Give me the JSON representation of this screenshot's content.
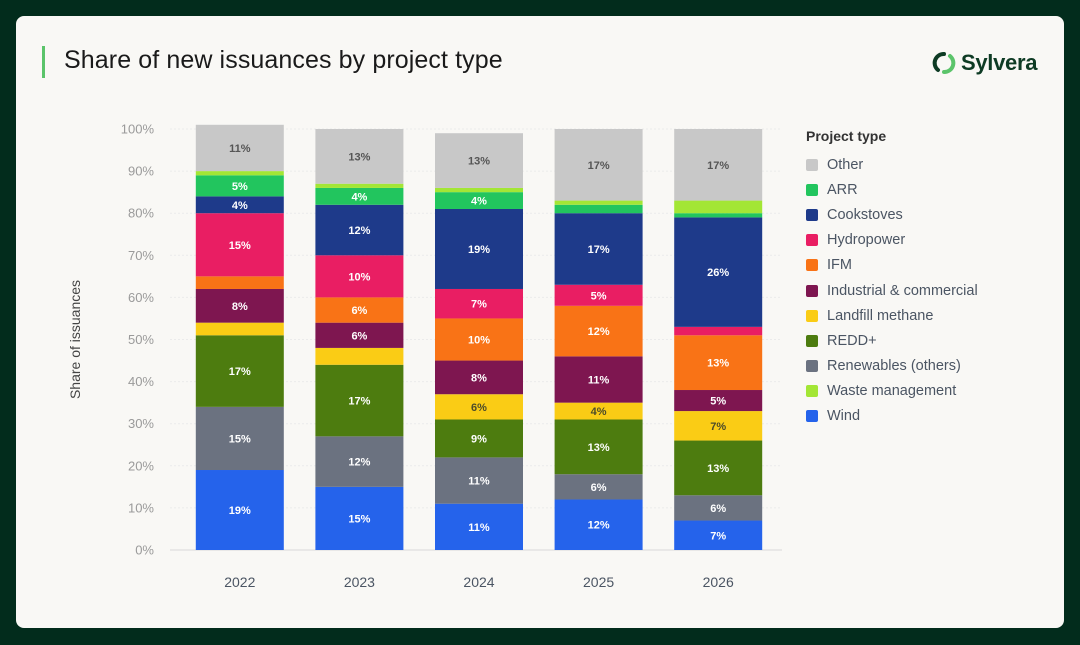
{
  "header": {
    "title": "Share of new issuances by project type",
    "logo_text": "Sylvera",
    "accent_color": "#5bc46a"
  },
  "chart_data": {
    "type": "bar",
    "stacked": true,
    "title": "Share of new issuances by project type",
    "xlabel": "",
    "ylabel": "Share of issuances",
    "ylim": [
      0,
      100
    ],
    "yticks": [
      "0%",
      "10%",
      "20%",
      "30%",
      "40%",
      "50%",
      "60%",
      "70%",
      "80%",
      "90%",
      "100%"
    ],
    "grid": true,
    "legend_title": "Project type",
    "legend_position": "right",
    "categories": [
      "2022",
      "2023",
      "2024",
      "2025",
      "2026"
    ],
    "series": [
      {
        "name": "Wind",
        "color": "#2563eb",
        "values": [
          19,
          15,
          11,
          12,
          7
        ],
        "labels": [
          "19%",
          "15%",
          "11%",
          "12%",
          "7%"
        ],
        "label_color": "#ffffff"
      },
      {
        "name": "Renewables (others)",
        "color": "#6b7280",
        "values": [
          15,
          12,
          11,
          6,
          6
        ],
        "labels": [
          "15%",
          "12%",
          "11%",
          "6%",
          "6%"
        ],
        "label_color": "#ffffff"
      },
      {
        "name": "REDD+",
        "color": "#4d7c0f",
        "values": [
          17,
          17,
          9,
          13,
          13
        ],
        "labels": [
          "17%",
          "17%",
          "9%",
          "13%",
          "13%"
        ],
        "label_color": "#ffffff"
      },
      {
        "name": "Landfill methane",
        "color": "#facc15",
        "values": [
          3,
          4,
          6,
          4,
          7
        ],
        "labels": [
          "",
          "",
          "6%",
          "4%",
          "7%"
        ],
        "label_color": "#4b4b2a"
      },
      {
        "name": "Industrial & commercial",
        "color": "#7e1650",
        "values": [
          8,
          6,
          8,
          11,
          5
        ],
        "labels": [
          "8%",
          "6%",
          "8%",
          "11%",
          "5%"
        ],
        "label_color": "#ffffff"
      },
      {
        "name": "IFM",
        "color": "#f97316",
        "values": [
          3,
          6,
          10,
          12,
          13
        ],
        "labels": [
          "",
          "6%",
          "10%",
          "12%",
          "13%"
        ],
        "label_color": "#ffffff"
      },
      {
        "name": "Hydropower",
        "color": "#e91e63",
        "values": [
          15,
          10,
          7,
          5,
          2
        ],
        "labels": [
          "15%",
          "10%",
          "7%",
          "5%",
          ""
        ],
        "label_color": "#ffffff"
      },
      {
        "name": "Cookstoves",
        "color": "#1e3a8a",
        "values": [
          4,
          12,
          19,
          17,
          26
        ],
        "labels": [
          "4%",
          "12%",
          "19%",
          "17%",
          "26%"
        ],
        "label_color": "#ffffff"
      },
      {
        "name": "ARR",
        "color": "#22c55e",
        "values": [
          5,
          4,
          4,
          2,
          1
        ],
        "labels": [
          "5%",
          "4%",
          "4%",
          "",
          ""
        ],
        "label_color": "#ffffff"
      },
      {
        "name": "Waste management",
        "color": "#a3e635",
        "values": [
          1,
          1,
          1,
          1,
          3
        ],
        "labels": [
          "",
          "",
          "",
          "",
          ""
        ],
        "label_color": "#ffffff"
      },
      {
        "name": "Other",
        "color": "#c8c8c8",
        "values": [
          11,
          13,
          13,
          17,
          17
        ],
        "labels": [
          "11%",
          "13%",
          "13%",
          "17%",
          "17%"
        ],
        "label_color": "#555555"
      }
    ],
    "legend_order": [
      "Other",
      "ARR",
      "Cookstoves",
      "Hydropower",
      "IFM",
      "Industrial & commercial",
      "Landfill methane",
      "REDD+",
      "Renewables (others)",
      "Waste management",
      "Wind"
    ]
  }
}
